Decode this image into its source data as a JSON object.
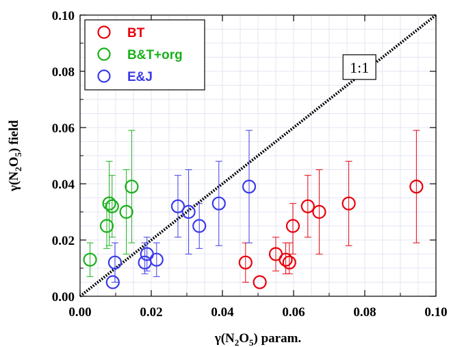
{
  "chart_data": {
    "type": "scatter",
    "xlabel": "γ(N2O5) param.",
    "ylabel": "γ(N2O5) field",
    "xlim": [
      0,
      0.1
    ],
    "ylim": [
      0,
      0.1
    ],
    "x_ticks": [
      "0.00",
      "0.02",
      "0.04",
      "0.06",
      "0.08",
      "0.10"
    ],
    "y_ticks": [
      "0.00",
      "0.02",
      "0.04",
      "0.06",
      "0.08",
      "0.10"
    ],
    "grid": true,
    "legend_position": "top-left",
    "annotation": {
      "text": "1:1",
      "x": 0.0785,
      "y": 0.0815
    },
    "reference_line": {
      "x": [
        0,
        0.1
      ],
      "y": [
        0,
        0.1
      ]
    },
    "series": [
      {
        "name": "BT",
        "color": "#e8000b",
        "points": [
          {
            "x": 0.0465,
            "y": 0.012,
            "lo": 0.005,
            "hi": 0.019
          },
          {
            "x": 0.0505,
            "y": 0.005,
            "lo": 0.005,
            "hi": 0.005
          },
          {
            "x": 0.055,
            "y": 0.015,
            "lo": 0.009,
            "hi": 0.021
          },
          {
            "x": 0.0578,
            "y": 0.013,
            "lo": 0.008,
            "hi": 0.019
          },
          {
            "x": 0.0588,
            "y": 0.012,
            "lo": 0.008,
            "hi": 0.019
          },
          {
            "x": 0.0598,
            "y": 0.025,
            "lo": 0.015,
            "hi": 0.033
          },
          {
            "x": 0.064,
            "y": 0.032,
            "lo": 0.021,
            "hi": 0.043
          },
          {
            "x": 0.0672,
            "y": 0.03,
            "lo": 0.015,
            "hi": 0.045
          },
          {
            "x": 0.0755,
            "y": 0.033,
            "lo": 0.018,
            "hi": 0.048
          },
          {
            "x": 0.0945,
            "y": 0.039,
            "lo": 0.019,
            "hi": 0.059
          }
        ]
      },
      {
        "name": "B&T+org",
        "color": "#1ab01a",
        "points": [
          {
            "x": 0.0028,
            "y": 0.013,
            "lo": 0.007,
            "hi": 0.019
          },
          {
            "x": 0.0075,
            "y": 0.025,
            "lo": 0.017,
            "hi": 0.033
          },
          {
            "x": 0.0082,
            "y": 0.033,
            "lo": 0.018,
            "hi": 0.048
          },
          {
            "x": 0.009,
            "y": 0.032,
            "lo": 0.021,
            "hi": 0.043
          },
          {
            "x": 0.013,
            "y": 0.03,
            "lo": 0.015,
            "hi": 0.045
          },
          {
            "x": 0.0145,
            "y": 0.039,
            "lo": 0.019,
            "hi": 0.059
          }
        ]
      },
      {
        "name": "E&J",
        "color": "#3a3ae8",
        "points": [
          {
            "x": 0.0092,
            "y": 0.005,
            "lo": 0.005,
            "hi": 0.005
          },
          {
            "x": 0.0098,
            "y": 0.012,
            "lo": 0.005,
            "hi": 0.019
          },
          {
            "x": 0.0182,
            "y": 0.012,
            "lo": 0.008,
            "hi": 0.019
          },
          {
            "x": 0.0188,
            "y": 0.015,
            "lo": 0.009,
            "hi": 0.021
          },
          {
            "x": 0.0215,
            "y": 0.013,
            "lo": 0.007,
            "hi": 0.019
          },
          {
            "x": 0.0275,
            "y": 0.032,
            "lo": 0.021,
            "hi": 0.043
          },
          {
            "x": 0.0305,
            "y": 0.03,
            "lo": 0.015,
            "hi": 0.045
          },
          {
            "x": 0.0335,
            "y": 0.025,
            "lo": 0.017,
            "hi": 0.033
          },
          {
            "x": 0.039,
            "y": 0.033,
            "lo": 0.018,
            "hi": 0.048
          },
          {
            "x": 0.0475,
            "y": 0.039,
            "lo": 0.019,
            "hi": 0.059
          }
        ]
      }
    ]
  }
}
